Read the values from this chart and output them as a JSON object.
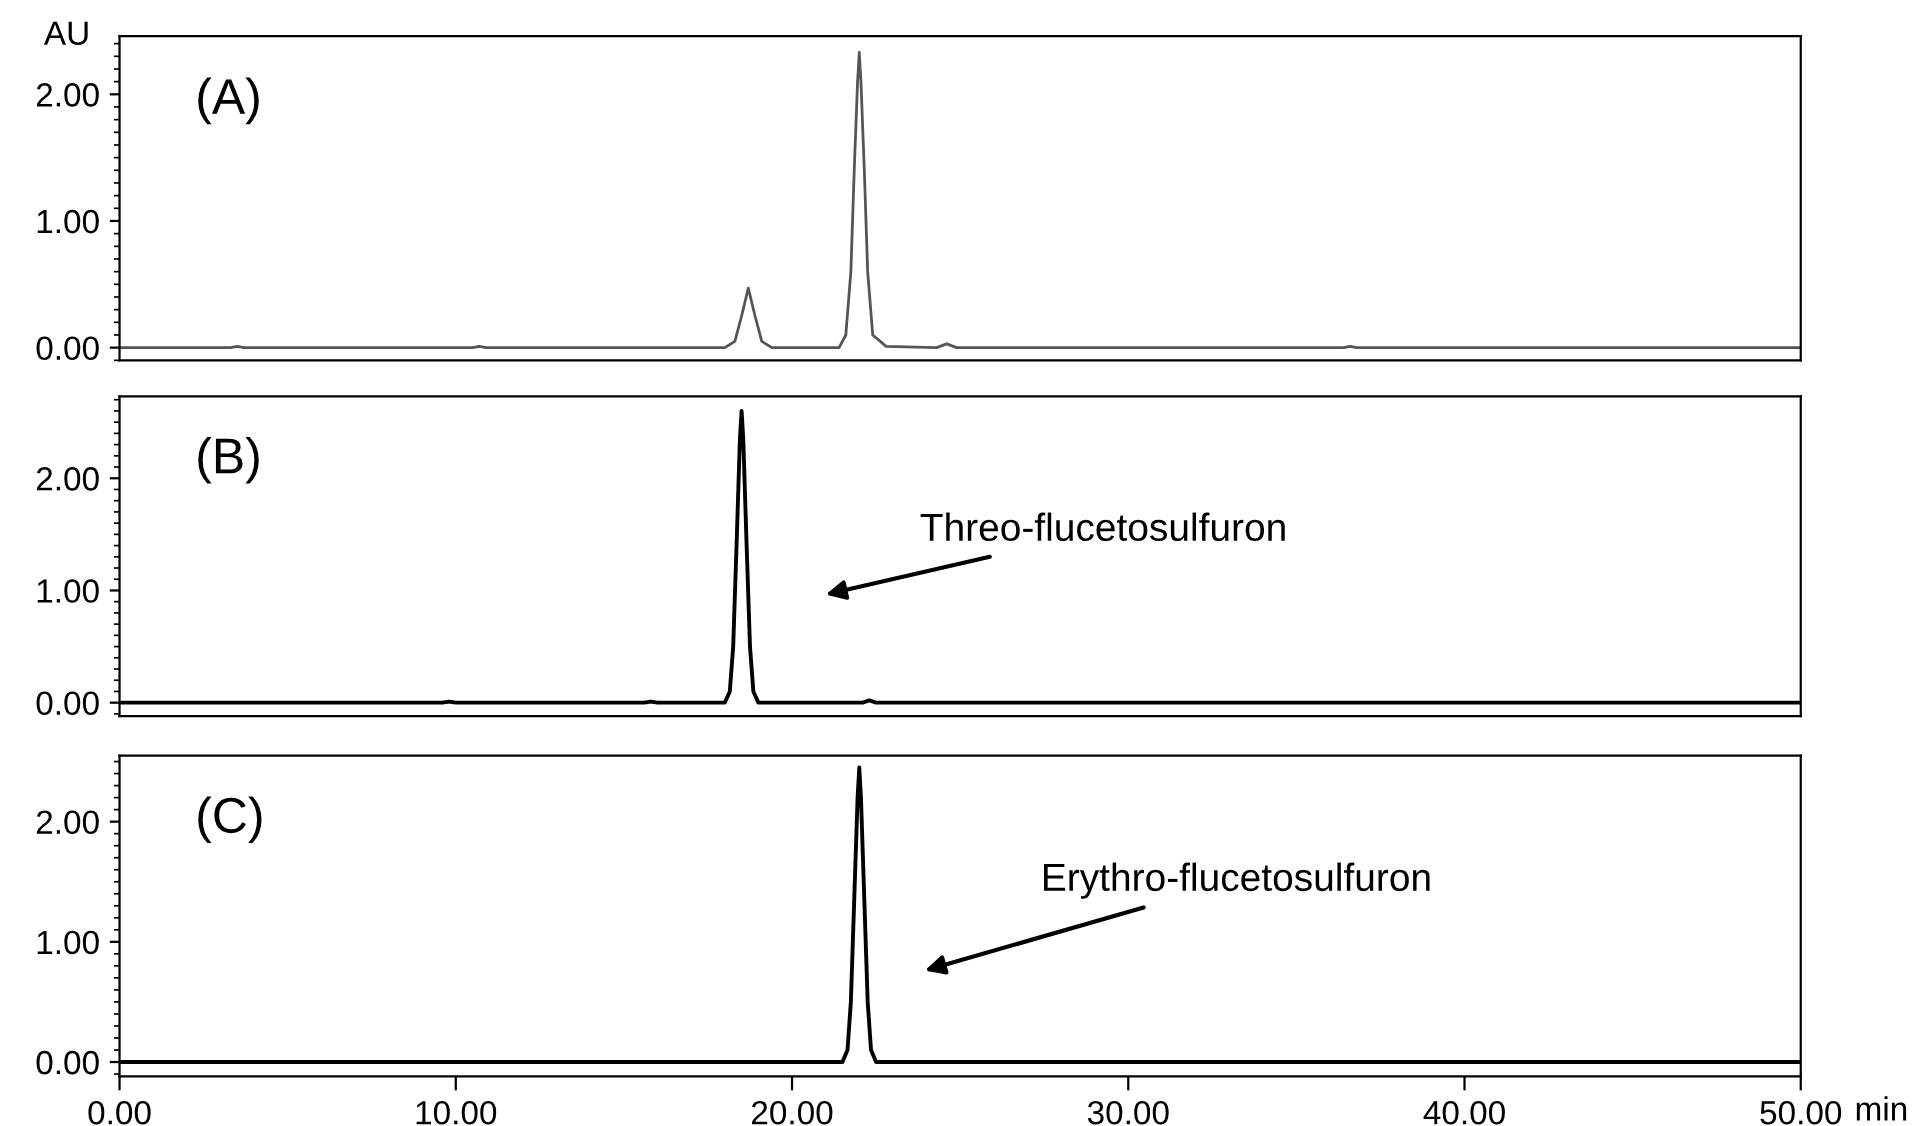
{
  "chart_data": [
    {
      "type": "line",
      "title": "(A)",
      "ylabel": "AU",
      "xlim": [
        0,
        50
      ],
      "ylim": [
        -0.1,
        2.46
      ],
      "yticks": [
        {
          "value": 0,
          "label": "0.00"
        },
        {
          "value": 1,
          "label": "1.00"
        },
        {
          "value": 2,
          "label": "2.00"
        }
      ],
      "tick_labels": "y",
      "grid": false,
      "legend": false,
      "series": [
        {
          "color": "#555555",
          "x": [
            0,
            3.3,
            3.5,
            3.7,
            10.5,
            10.7,
            10.9,
            18.0,
            18.3,
            18.5,
            18.7,
            18.9,
            19.1,
            19.4,
            21.4,
            21.6,
            21.75,
            21.85,
            21.95,
            22.0,
            22.05,
            22.15,
            22.25,
            22.4,
            22.8,
            24.3,
            24.6,
            24.9,
            36.4,
            36.6,
            36.8,
            50
          ],
          "values": [
            0,
            0,
            0.01,
            0,
            0,
            0.01,
            0,
            0,
            0.05,
            0.25,
            0.47,
            0.25,
            0.05,
            0,
            0,
            0.1,
            0.6,
            1.4,
            2.1,
            2.33,
            2.1,
            1.4,
            0.6,
            0.1,
            0.01,
            0,
            0.03,
            0,
            0,
            0.01,
            0,
            0
          ]
        }
      ]
    },
    {
      "type": "line",
      "title": "(B)",
      "xlim": [
        0,
        50
      ],
      "ylim": [
        -0.12,
        2.73
      ],
      "yticks": [
        {
          "value": 0,
          "label": "0.00"
        },
        {
          "value": 1,
          "label": "1.00"
        },
        {
          "value": 2,
          "label": "2.00"
        }
      ],
      "tick_labels": "y",
      "grid": false,
      "legend": false,
      "annotations": [
        "Threo-flucetosulfuron"
      ],
      "series": [
        {
          "color": "#000000",
          "x": [
            0,
            9.6,
            9.8,
            10.0,
            15.6,
            15.8,
            16.0,
            18.0,
            18.15,
            18.25,
            18.35,
            18.45,
            18.5,
            18.55,
            18.65,
            18.75,
            18.85,
            19.0,
            22.1,
            22.3,
            22.5,
            50
          ],
          "values": [
            0,
            0,
            0.01,
            0,
            0,
            0.01,
            0,
            0,
            0.1,
            0.5,
            1.4,
            2.35,
            2.6,
            2.35,
            1.4,
            0.5,
            0.1,
            0,
            0,
            0.02,
            0,
            0
          ]
        }
      ]
    },
    {
      "type": "line",
      "title": "(C)",
      "xlabel": "min",
      "xlim": [
        0,
        50
      ],
      "xticks": [
        {
          "value": 0,
          "label": "0.00"
        },
        {
          "value": 10,
          "label": "10.00"
        },
        {
          "value": 20,
          "label": "20.00"
        },
        {
          "value": 30,
          "label": "30.00"
        },
        {
          "value": 40,
          "label": "40.00"
        },
        {
          "value": 50,
          "label": "50.00"
        }
      ],
      "ylim": [
        -0.12,
        2.55
      ],
      "yticks": [
        {
          "value": 0,
          "label": "0.00"
        },
        {
          "value": 1,
          "label": "1.00"
        },
        {
          "value": 2,
          "label": "2.00"
        }
      ],
      "grid": false,
      "legend": false,
      "annotations": [
        "Erythro-flucetosulfuron"
      ],
      "series": [
        {
          "color": "#000000",
          "x": [
            0,
            21.5,
            21.65,
            21.75,
            21.85,
            21.95,
            22.0,
            22.05,
            22.15,
            22.25,
            22.35,
            22.5,
            50
          ],
          "values": [
            0,
            0,
            0.1,
            0.5,
            1.35,
            2.2,
            2.45,
            2.2,
            1.35,
            0.5,
            0.1,
            0,
            0
          ]
        }
      ]
    }
  ]
}
